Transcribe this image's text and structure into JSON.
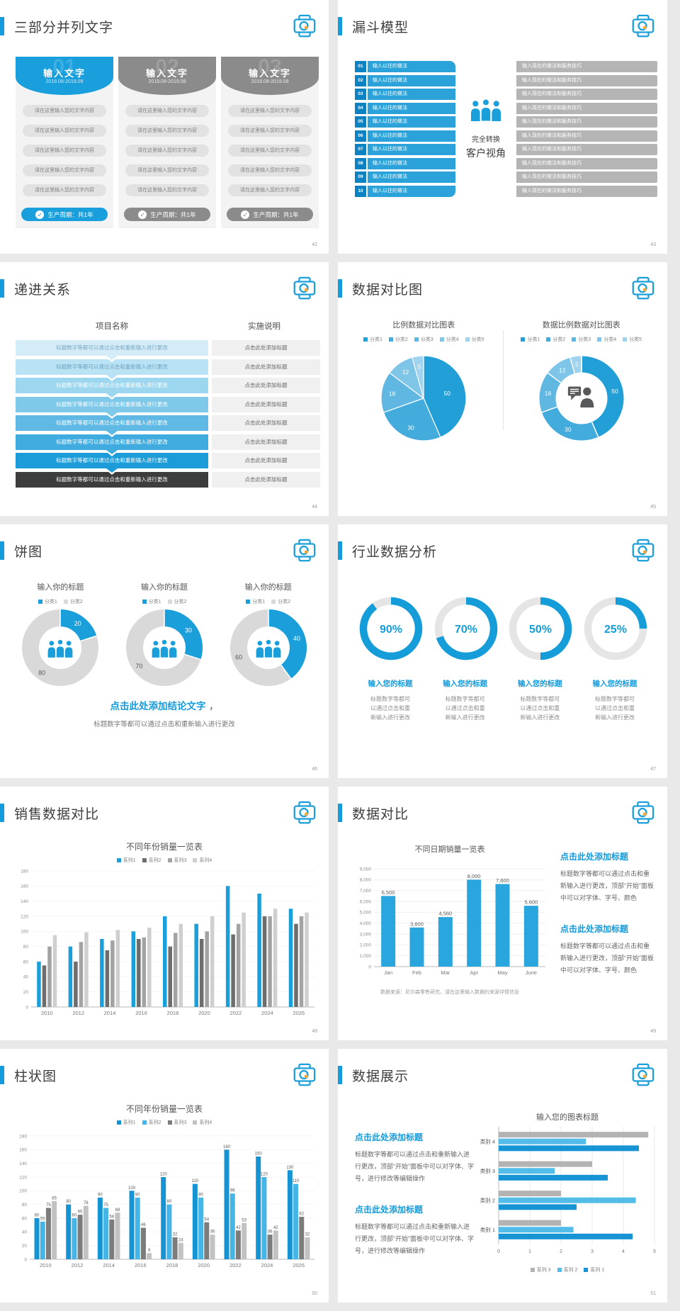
{
  "colors": {
    "accent": "#149bdb",
    "chart_blue": "#239fd8",
    "gray_bar": "#b5b5b5",
    "dark_row": "#3d3d3d"
  },
  "slides": [
    {
      "id": "s42",
      "number": "42",
      "title": "三部分并列文字",
      "card_header": "输入文字",
      "card_date": "2018.08-2019.08",
      "card_item": "请在这里输入您的文字内容",
      "card_items_per_card": 5,
      "card_footer": "生产周期：共1年",
      "cards": [
        {
          "num": "01",
          "variant": "blue"
        },
        {
          "num": "02",
          "variant": "gray"
        },
        {
          "num": "03",
          "variant": "gray"
        }
      ]
    },
    {
      "id": "s43",
      "number": "43",
      "title": "漏斗模型",
      "row_numbers": [
        "01",
        "02",
        "03",
        "04",
        "05",
        "06",
        "07",
        "08",
        "09",
        "10"
      ],
      "left_label": "输入以往的做法",
      "right_label": "输入现在的做法和服务技巧",
      "center_line1": "完全转换",
      "center_line2": "客户视角"
    },
    {
      "id": "s44",
      "number": "44",
      "title": "递进关系",
      "col1": "项目名称",
      "col2": "实施说明",
      "left_text": "标题数字等都可以通过点击和重新输入进行更改",
      "right_text": "点击此处添加标题",
      "row_colors": [
        "#d3ecf8",
        "#b9e2f4",
        "#9dd6ef",
        "#7ec8ea",
        "#5fb9e4",
        "#3fabdf",
        "#1c9cd9",
        "#3d3d3d"
      ],
      "row_text_colors": [
        "#7ba8c0",
        "#6fa3bf",
        "#ffffff",
        "#ffffff",
        "#ffffff",
        "#ffffff",
        "#ffffff",
        "#ffffff"
      ]
    },
    {
      "id": "s45",
      "number": "45",
      "title": "数据对比图"
    },
    {
      "id": "s46",
      "number": "46",
      "title": "饼图",
      "conclusion": "点击此处添加结论文字",
      "comma": "，",
      "body": "标题数字等都可以通过点击和重新输入进行更改"
    },
    {
      "id": "s47",
      "number": "47",
      "title": "行业数据分析"
    },
    {
      "id": "s48",
      "number": "48",
      "title": "销售数据对比"
    },
    {
      "id": "s49",
      "number": "49",
      "title": "数据对比",
      "blocks": [
        {
          "title": "点击此处添加标题",
          "body": "标题数字等都可以通过点击和重新输入进行更改，顶部“开始”面板中可以对字体、字号、颜色"
        },
        {
          "title": "点击此处添加标题",
          "body": "标题数字等都可以通过点击和重新输入进行更改，顶部“开始”面板中可以对字体、字号、颜色"
        }
      ],
      "source": "数据来源：尼尔森零售研究，请在这里输入数据的来源详情信息"
    },
    {
      "id": "s50",
      "number": "50",
      "title": "柱状图"
    },
    {
      "id": "s51",
      "number": "51",
      "title": "数据展示",
      "blocks": [
        {
          "title": "点击此处添加标题",
          "body": "标题数字等都可以通过点击和重新输入进行更改，顶部“开始”面板中可以对字体、字号，进行修改等编辑操作"
        },
        {
          "title": "点击此处添加标题",
          "body": "标题数字等都可以通过点击和重新输入进行更改，顶部“开始”面板中可以对字体、字号，进行修改等编辑操作"
        }
      ]
    }
  ],
  "chart_data": [
    {
      "id": "c45a",
      "type": "pie",
      "title": "比例数据对比图表",
      "legend": [
        "分类1",
        "分类2",
        "分类3",
        "分类4",
        "分类5"
      ],
      "values": [
        50,
        30,
        18,
        12,
        5
      ],
      "colors": [
        "#239fd8",
        "#44abdd",
        "#60b7e2",
        "#7fc5e8",
        "#a0d3ee"
      ]
    },
    {
      "id": "c45b",
      "type": "donut",
      "title": "数据比例数据对比图表",
      "legend": [
        "分类1",
        "分类2",
        "分类3",
        "分类4",
        "分类5"
      ],
      "values": [
        50,
        30,
        18,
        12,
        5
      ],
      "colors": [
        "#239fd8",
        "#44abdd",
        "#60b7e2",
        "#7fc5e8",
        "#a0d3ee"
      ]
    },
    {
      "id": "c46",
      "type": "donut-pair",
      "title": "输入你的标题",
      "legend": [
        "分类1",
        "分类2"
      ],
      "colors": [
        "#1b9fda",
        "#d9d9d9"
      ],
      "charts": [
        {
          "blue": 20,
          "gray": 80
        },
        {
          "blue": 30,
          "gray": 70
        },
        {
          "blue": 40,
          "gray": 60
        }
      ]
    },
    {
      "id": "c47",
      "type": "gauge",
      "values": [
        90,
        70,
        50,
        25
      ],
      "value_labels": [
        "90%",
        "70%",
        "50%",
        "25%"
      ],
      "label": "输入您的标题",
      "body_lines": [
        "标题数字等都可",
        "以通过点击和重",
        "新输入进行更改"
      ],
      "color": "#149dd8",
      "track": "#e5e5e5"
    },
    {
      "id": "c48",
      "type": "bar",
      "title": "不同年份销量一览表",
      "categories": [
        "2010",
        "2012",
        "2014",
        "2016",
        "2018",
        "2020",
        "2022",
        "2024",
        "2026"
      ],
      "series": [
        {
          "name": "系列1",
          "color": "#1b9fda",
          "values": [
            60,
            80,
            90,
            100,
            120,
            110,
            160,
            150,
            130
          ]
        },
        {
          "name": "系列2",
          "color": "#6d6d6d",
          "values": [
            55,
            60,
            75,
            90,
            80,
            90,
            96,
            120,
            110
          ]
        },
        {
          "name": "系列3",
          "color": "#a3a3a3",
          "values": [
            80,
            86,
            88,
            92,
            98,
            100,
            110,
            120,
            120
          ]
        },
        {
          "name": "系列4",
          "color": "#cfcfcf",
          "values": [
            95,
            99,
            102,
            105,
            110,
            120,
            125,
            130,
            125
          ]
        }
      ],
      "ylim": [
        0,
        180
      ],
      "ystep": 20,
      "show_labels": false
    },
    {
      "id": "c49",
      "type": "bar",
      "title": "不同日期销量一览表",
      "categories": [
        "Jan",
        "Feb",
        "Mar",
        "Apr",
        "May",
        "June"
      ],
      "series": [
        {
          "name": "销量",
          "color": "#29a6de",
          "values": [
            6500,
            3600,
            4560,
            8000,
            7600,
            5600
          ],
          "labels": [
            "6,500",
            "3,600",
            "4,560",
            "8,000",
            "7,600",
            "5,600"
          ]
        }
      ],
      "ylim": [
        0,
        9000
      ],
      "ystep": 1000,
      "ytick_labels": [
        "0",
        "1,000",
        "2,000",
        "3,000",
        "4,000",
        "5,000",
        "6,000",
        "7,000",
        "8,000",
        "9,000"
      ],
      "show_labels": true
    },
    {
      "id": "c50",
      "type": "bar",
      "title": "不同年份销量一览表",
      "categories": [
        "2010",
        "2012",
        "2014",
        "2016",
        "2018",
        "2020",
        "2022",
        "2024",
        "2026"
      ],
      "series": [
        {
          "name": "系列1",
          "color": "#1593d2",
          "values": [
            60,
            80,
            90,
            100,
            120,
            110,
            160,
            150,
            130
          ]
        },
        {
          "name": "系列2",
          "color": "#45b5e7",
          "values": [
            55,
            60,
            75,
            90,
            80,
            90,
            96,
            120,
            110
          ]
        },
        {
          "name": "系列3",
          "color": "#7c7c7c",
          "values": [
            75,
            65,
            58,
            46,
            32,
            54,
            42,
            36,
            62
          ]
        },
        {
          "name": "系列4",
          "color": "#c2c2c2",
          "values": [
            85,
            78,
            68,
            9,
            24,
            36,
            53,
            42,
            32
          ]
        }
      ],
      "ylim": [
        0,
        180
      ],
      "ystep": 20,
      "show_labels": true
    },
    {
      "id": "c51",
      "type": "bar-horizontal",
      "title": "输入您的图表标题",
      "categories": [
        "类别 4",
        "类别 3",
        "类别 2",
        "类别 1"
      ],
      "series": [
        {
          "name": "系列 3",
          "color": "#b3b3b3",
          "values": [
            4.8,
            3.0,
            2.0,
            2.0
          ]
        },
        {
          "name": "系列 2",
          "color": "#54bce8",
          "values": [
            2.8,
            1.8,
            4.4,
            2.4
          ]
        },
        {
          "name": "系列 1",
          "color": "#1694d4",
          "values": [
            4.5,
            3.5,
            2.5,
            4.3
          ]
        }
      ],
      "xlim": [
        0,
        5
      ],
      "xticks": [
        0,
        1,
        2,
        3,
        4,
        5
      ],
      "legend_order": [
        "系列 3",
        "系列 2",
        "系列 1"
      ]
    }
  ]
}
